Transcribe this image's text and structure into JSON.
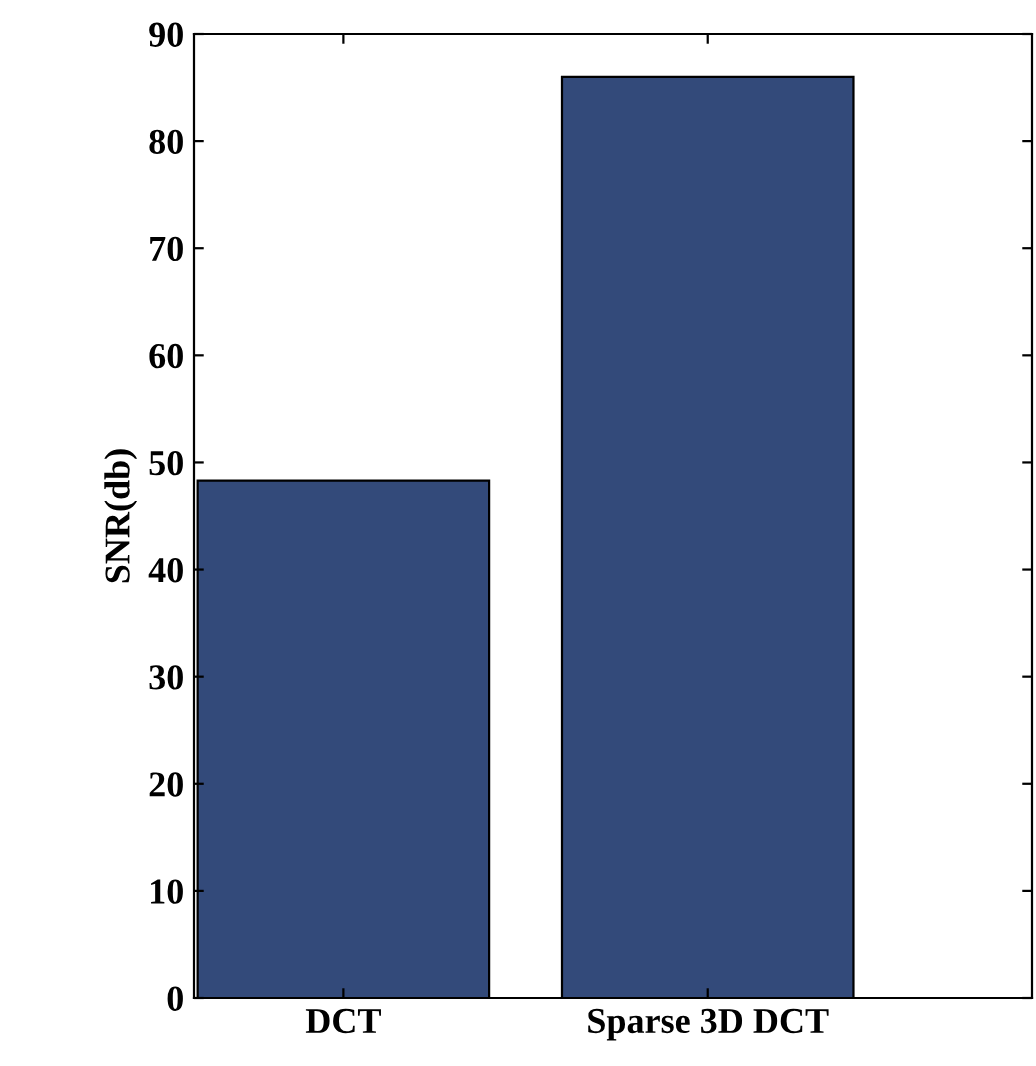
{
  "chart_data": {
    "type": "bar",
    "ylabel": "SNR(db)",
    "categories": [
      "DCT",
      "Sparse 3D DCT"
    ],
    "values": [
      48.3,
      86
    ],
    "color": "#334a7a",
    "ylim": [
      0,
      90
    ],
    "yticks": [
      0,
      10,
      20,
      30,
      40,
      50,
      60,
      70,
      80,
      90
    ],
    "grid": false
  }
}
